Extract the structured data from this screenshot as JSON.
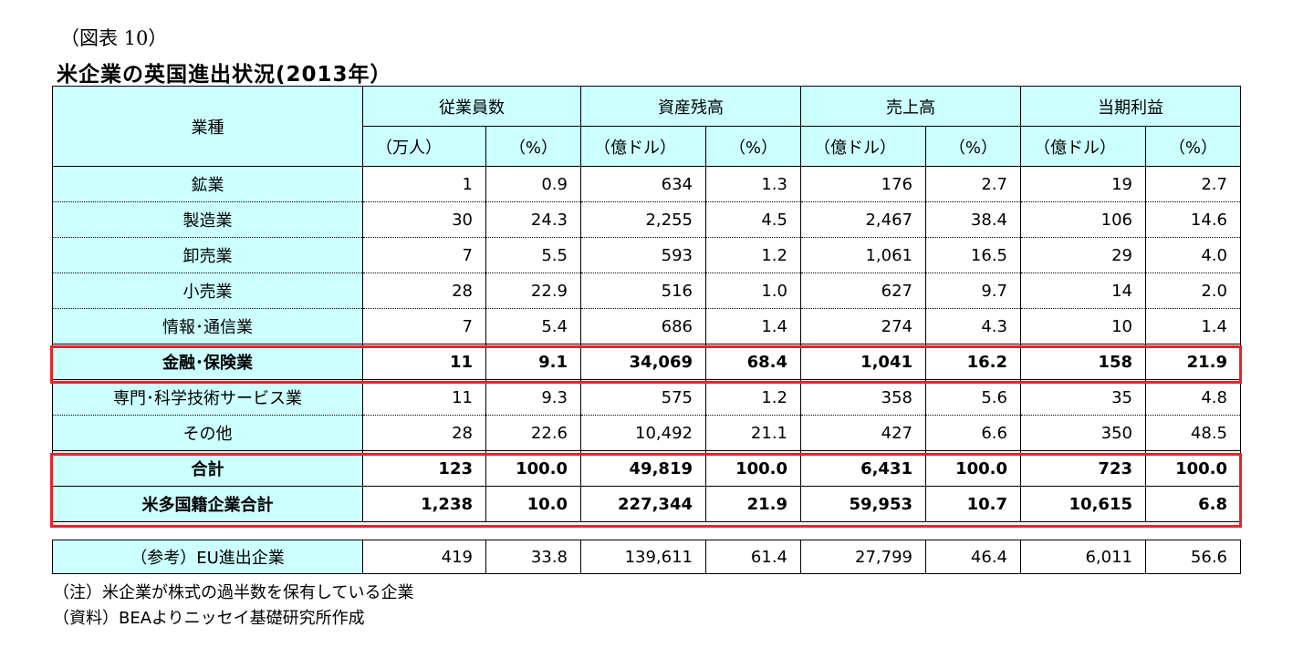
{
  "figure_label": "（図表 10）",
  "title": "米企業の英国進出状況(2013年）",
  "header": {
    "industry": "業種",
    "groups": [
      "従業員数",
      "資産残高",
      "売上高",
      "当期利益"
    ],
    "units": [
      "（万人）",
      "（%）",
      "（億ドル）",
      "（%）",
      "（億ドル）",
      "（%）",
      "（億ドル）",
      "（%）"
    ]
  },
  "rows": [
    {
      "name": "鉱業",
      "values": [
        "1",
        "0.9",
        "634",
        "1.3",
        "176",
        "2.7",
        "19",
        "2.7"
      ]
    },
    {
      "name": "製造業",
      "values": [
        "30",
        "24.3",
        "2,255",
        "4.5",
        "2,467",
        "38.4",
        "106",
        "14.6"
      ]
    },
    {
      "name": "卸売業",
      "values": [
        "7",
        "5.5",
        "593",
        "1.2",
        "1,061",
        "16.5",
        "29",
        "4.0"
      ]
    },
    {
      "name": "小売業",
      "values": [
        "28",
        "22.9",
        "516",
        "1.0",
        "627",
        "9.7",
        "14",
        "2.0"
      ]
    },
    {
      "name": "情報･通信業",
      "values": [
        "7",
        "5.4",
        "686",
        "1.4",
        "274",
        "4.3",
        "10",
        "1.4"
      ]
    },
    {
      "name": "金融･保険業",
      "values": [
        "11",
        "9.1",
        "34,069",
        "68.4",
        "1,041",
        "16.2",
        "158",
        "21.9"
      ]
    },
    {
      "name": "専門･科学技術サービス業",
      "values": [
        "11",
        "9.3",
        "575",
        "1.2",
        "358",
        "5.6",
        "35",
        "4.8"
      ]
    },
    {
      "name": "その他",
      "values": [
        "28",
        "22.6",
        "10,492",
        "21.1",
        "427",
        "6.6",
        "350",
        "48.5"
      ]
    },
    {
      "name": "合計",
      "values": [
        "123",
        "100.0",
        "49,819",
        "100.0",
        "6,431",
        "100.0",
        "723",
        "100.0"
      ]
    },
    {
      "name": "米多国籍企業合計",
      "values": [
        "1,238",
        "10.0",
        "227,344",
        "21.9",
        "59,953",
        "10.7",
        "10,615",
        "6.8"
      ]
    }
  ],
  "reference_row": {
    "name": "（参考）EU進出企業",
    "values": [
      "419",
      "33.8",
      "139,611",
      "61.4",
      "27,799",
      "46.4",
      "6,011",
      "56.6"
    ]
  },
  "notes": [
    "（注）米企業が株式の過半数を保有している企業",
    "（資料）BEAよりニッセイ基礎研究所作成"
  ],
  "colors": {
    "header_bg": "#ccffff",
    "highlight": "#e8222c"
  }
}
